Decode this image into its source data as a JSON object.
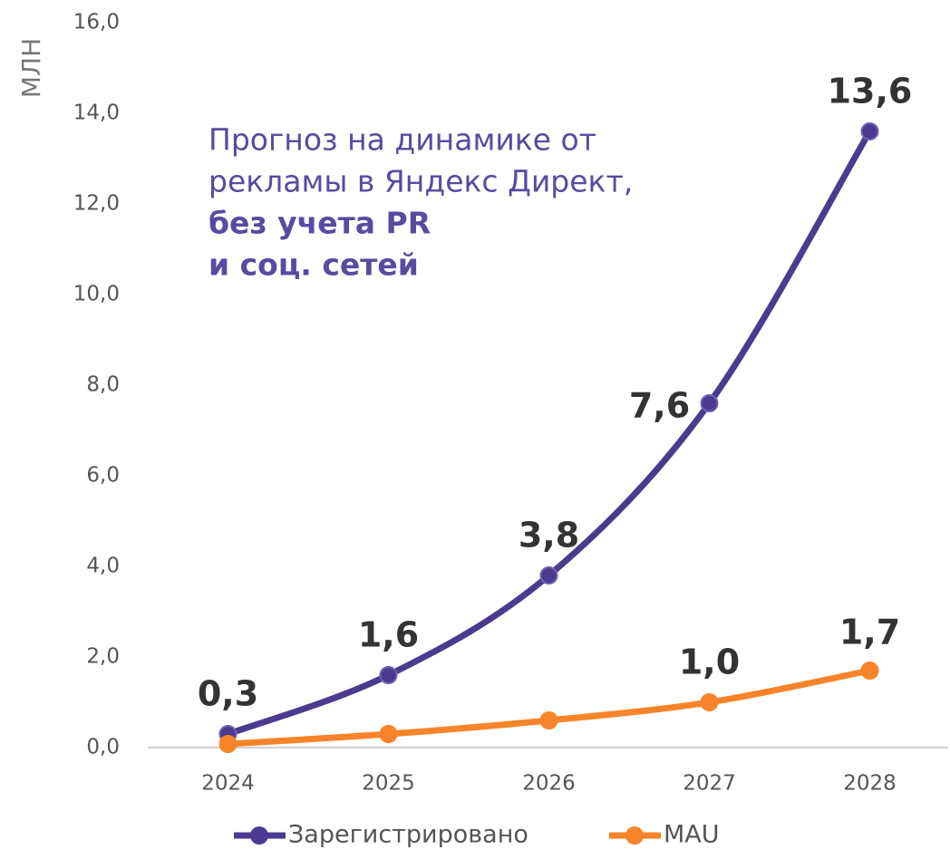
{
  "chart_data": {
    "type": "line",
    "y_label": "МЛН",
    "annotation": [
      "Прогноз на динамике от",
      "рекламы в Яндекс Директ,",
      "без учета PR",
      "и соц. сетей"
    ],
    "annotation_bold": [
      false,
      false,
      true,
      true
    ],
    "categories": [
      "2024",
      "2025",
      "2026",
      "2027",
      "2028"
    ],
    "series": [
      {
        "name": "Зарегистрировано",
        "color": "#4b3a8f",
        "values": [
          0.3,
          1.6,
          3.8,
          7.6,
          13.6
        ],
        "value_labels": [
          "0,3",
          "1,6",
          "3,8",
          "7,6",
          "13,6"
        ]
      },
      {
        "name": "MAU",
        "color": "#f7842a",
        "values": [
          0.08,
          0.3,
          0.6,
          1.0,
          1.7
        ],
        "value_labels": [
          null,
          null,
          null,
          "1,0",
          "1,7"
        ]
      }
    ],
    "ylim": [
      0,
      16
    ],
    "yticks": [
      {
        "value": 0,
        "label": "0,0"
      },
      {
        "value": 2,
        "label": "2,0"
      },
      {
        "value": 4,
        "label": "4,0"
      },
      {
        "value": 6,
        "label": "6,0"
      },
      {
        "value": 8,
        "label": "8,0"
      },
      {
        "value": 10,
        "label": "10,0"
      },
      {
        "value": 12,
        "label": "12,0"
      },
      {
        "value": 14,
        "label": "14,0"
      },
      {
        "value": 16,
        "label": "16,0"
      }
    ],
    "smooth": true,
    "legend": "bottom"
  }
}
